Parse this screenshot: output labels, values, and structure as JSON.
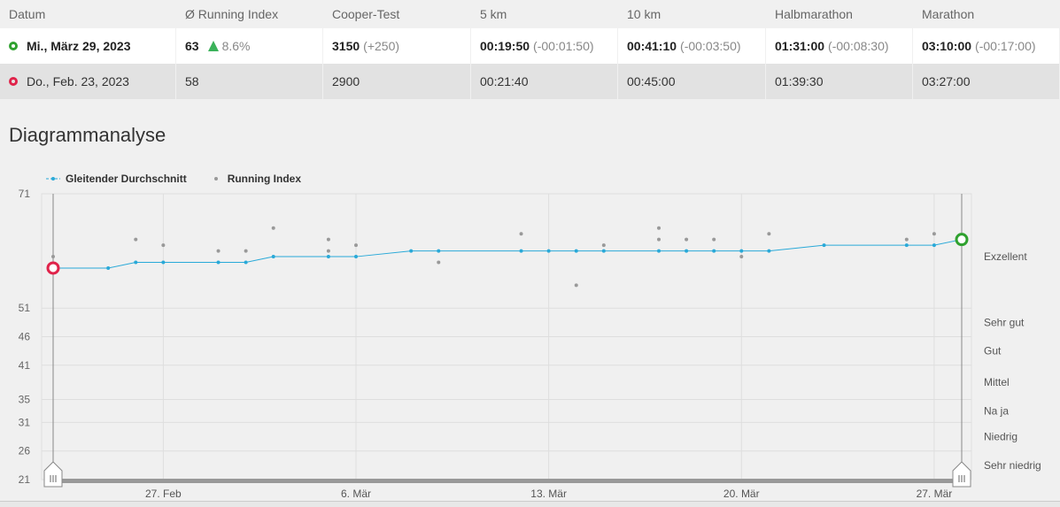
{
  "table": {
    "headers": [
      "Datum",
      "Ø Running Index",
      "Cooper-Test",
      "5 km",
      "10 km",
      "Halbmarathon",
      "Marathon"
    ],
    "current": {
      "date": "Mi., März 29, 2023",
      "running_index": "63",
      "running_index_change": "8.6%",
      "cooper": "3150",
      "cooper_change": "(+250)",
      "km5": "00:19:50",
      "km5_change": "(-00:01:50)",
      "km10": "00:41:10",
      "km10_change": "(-00:03:50)",
      "half": "01:31:00",
      "half_change": "(-00:08:30)",
      "marathon": "03:10:00",
      "marathon_change": "(-00:17:00)"
    },
    "previous": {
      "date": "Do., Feb. 23, 2023",
      "running_index": "58",
      "cooper": "2900",
      "km5": "00:21:40",
      "km10": "00:45:00",
      "half": "01:39:30",
      "marathon": "03:27:00"
    }
  },
  "section_title": "Diagrammanalyse",
  "colors": {
    "moving_average": "#29a9d8",
    "running_index": "#999999",
    "current_marker": "#2fa12f",
    "previous_marker": "#e0234a"
  },
  "chart_data": {
    "type": "line",
    "legend": [
      "Gleitender Durchschnitt",
      "Running Index"
    ],
    "legend_position": "top-left",
    "y_ticks": [
      71,
      51,
      46,
      41,
      35,
      31,
      26,
      21
    ],
    "ylim": [
      21,
      71
    ],
    "x_ticks": [
      "27. Feb",
      "6. Mär",
      "13. Mär",
      "20. Mär",
      "27. Mär"
    ],
    "x_tick_days": [
      4,
      11,
      18,
      25,
      32
    ],
    "xlim": [
      0,
      34
    ],
    "grid": true,
    "categories": [
      {
        "label": "Exzellent",
        "y": 60.0
      },
      {
        "label": "Sehr gut",
        "y": 48.5
      },
      {
        "label": "Gut",
        "y": 43.5
      },
      {
        "label": "Mittel",
        "y": 38.0
      },
      {
        "label": "Na ja",
        "y": 33.0
      },
      {
        "label": "Niedrig",
        "y": 28.5
      },
      {
        "label": "Sehr niedrig",
        "y": 23.5
      }
    ],
    "series": [
      {
        "name": "Gleitender Durchschnitt",
        "x": [
          0,
          2,
          3,
          4,
          6,
          7,
          8,
          10,
          11,
          13,
          14,
          17,
          18,
          19,
          20,
          22,
          23,
          24,
          25,
          26,
          28,
          31,
          32,
          33
        ],
        "y": [
          58,
          58,
          59,
          59,
          59,
          59,
          60,
          60,
          60,
          61,
          61,
          61,
          61,
          61,
          61,
          61,
          61,
          61,
          61,
          61,
          62,
          62,
          62,
          63
        ]
      },
      {
        "name": "Running Index",
        "x": [
          0,
          3,
          4,
          6,
          7,
          8,
          10,
          10,
          11,
          14,
          17,
          19,
          20,
          22,
          22,
          23,
          24,
          25,
          26,
          31,
          32,
          33
        ],
        "y": [
          60,
          63,
          62,
          61,
          61,
          65,
          63,
          61,
          62,
          59,
          64,
          55,
          62,
          65,
          63,
          63,
          63,
          60,
          64,
          63,
          64,
          63
        ]
      }
    ],
    "markers": [
      {
        "name": "previous",
        "x": 0,
        "y": 58
      },
      {
        "name": "current",
        "x": 33,
        "y": 63
      }
    ]
  }
}
